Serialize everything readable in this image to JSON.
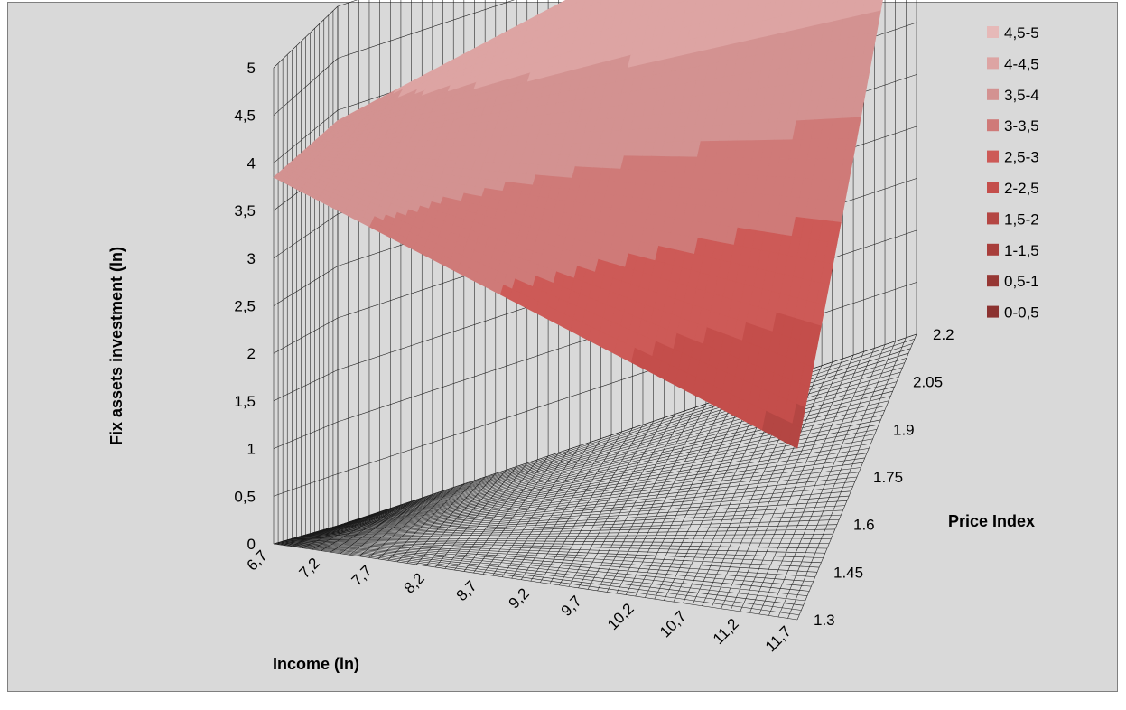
{
  "chart_data": {
    "type": "surface",
    "title": "",
    "zlabel": "Fix assets investment (ln)",
    "xlabel": "Income (ln)",
    "ylabel": "Price Index",
    "z_ticks": [
      "0",
      "0,5",
      "1",
      "1,5",
      "2",
      "2,5",
      "3",
      "3,5",
      "4",
      "4,5",
      "5"
    ],
    "x_ticks": [
      "6,7",
      "7,2",
      "7,7",
      "8,2",
      "8,7",
      "9,2",
      "9,7",
      "10,2",
      "10,7",
      "11,2",
      "11,7"
    ],
    "y_ticks": [
      "1.3",
      "1.45",
      "1.6",
      "1.75",
      "1.9",
      "2.05",
      "2.2"
    ],
    "zlim": [
      0,
      5
    ],
    "xlim": [
      6.7,
      11.7
    ],
    "ylim": [
      1.3,
      2.2
    ],
    "grid": true,
    "legend_position": "right",
    "surface_corners": [
      {
        "x": 6.7,
        "y": 2.2,
        "z": 3.9
      },
      {
        "x": 6.7,
        "y": 1.3,
        "z": 3.85
      },
      {
        "x": 11.7,
        "y": 1.3,
        "z": 1.8
      },
      {
        "x": 11.7,
        "y": 2.2,
        "z": 5.0
      }
    ],
    "legend": [
      {
        "label": "4,5-5",
        "color": "#e6b9b8"
      },
      {
        "label": "4-4,5",
        "color": "#dda4a3"
      },
      {
        "label": "3,5-4",
        "color": "#d39291"
      },
      {
        "label": "3-3,5",
        "color": "#cf7a78"
      },
      {
        "label": "2,5-3",
        "color": "#cd5a57"
      },
      {
        "label": "2-2,5",
        "color": "#c44e4b"
      },
      {
        "label": "1,5-2",
        "color": "#b44643"
      },
      {
        "label": "1-1,5",
        "color": "#a83e3b"
      },
      {
        "label": "0,5-1",
        "color": "#963734"
      },
      {
        "label": "0-0,5",
        "color": "#8b3230"
      }
    ]
  }
}
